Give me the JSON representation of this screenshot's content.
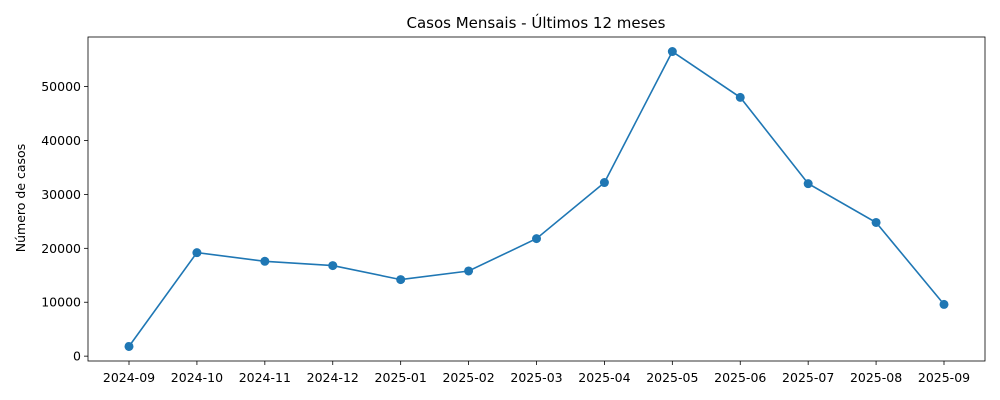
{
  "chart_data": {
    "type": "line",
    "title": "Casos Mensais - Últimos 12 meses",
    "xlabel": "",
    "ylabel": "Número de casos",
    "categories": [
      "2024-09",
      "2024-10",
      "2024-11",
      "2024-12",
      "2025-01",
      "2025-02",
      "2025-03",
      "2025-04",
      "2025-05",
      "2025-06",
      "2025-07",
      "2025-08",
      "2025-09"
    ],
    "series": [
      {
        "values": [
          1800,
          19200,
          17600,
          16800,
          14200,
          15800,
          21800,
          32200,
          56500,
          48000,
          32000,
          24800,
          9600
        ]
      }
    ],
    "yticks": [
      0,
      10000,
      20000,
      30000,
      40000,
      50000
    ],
    "ytick_labels": [
      "0",
      "10000",
      "20000",
      "30000",
      "40000",
      "50000"
    ],
    "ylim": [
      -900,
      59200
    ],
    "grid": false,
    "legend": "none",
    "colors": {
      "line": "#1f77b4",
      "marker": "#1f77b4",
      "axes": "#000000"
    }
  }
}
